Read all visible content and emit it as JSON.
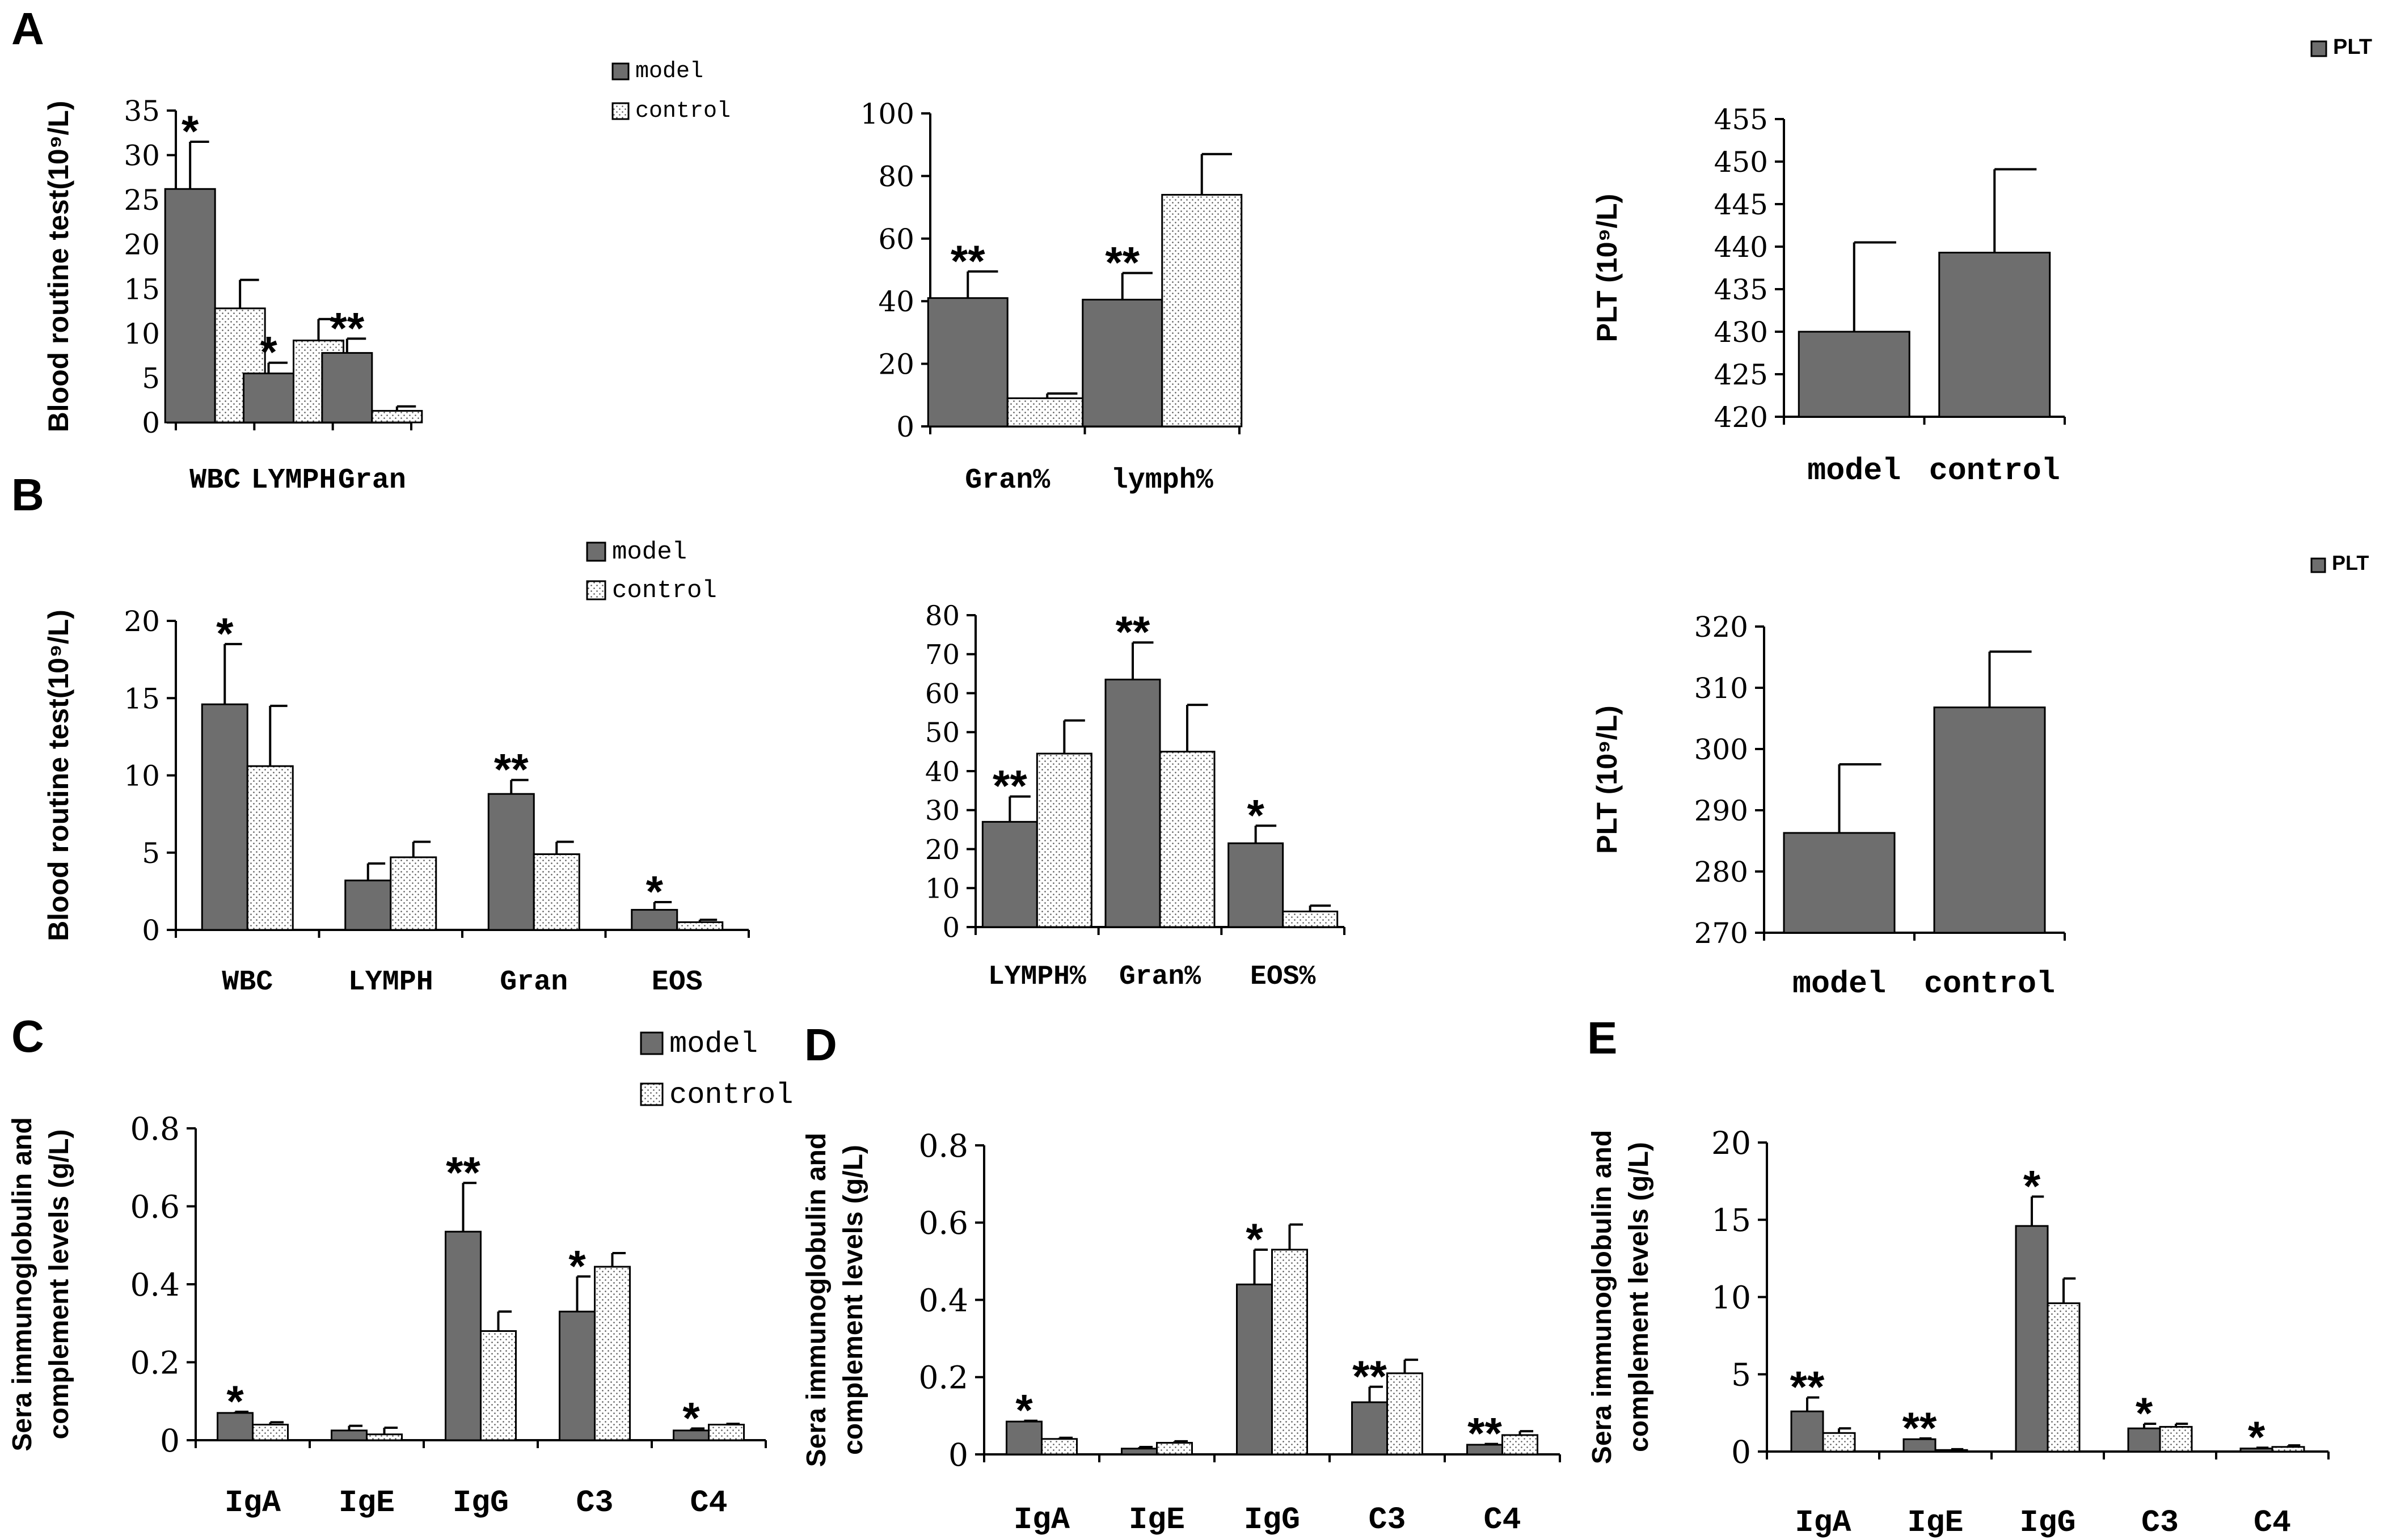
{
  "colors": {
    "model": "#6e6e6e",
    "control_bg": "#ffffff",
    "control_dot": "#555555",
    "axis": "#000000"
  },
  "panel_labels": {
    "A": "A",
    "B": "B",
    "C": "C",
    "D": "D",
    "E": "E"
  },
  "chart_data": [
    {
      "id": "A1",
      "type": "bar",
      "ylabel": "Blood routine test(10⁹/L)",
      "categories": [
        "WBC",
        "LYMPH",
        "Gran"
      ],
      "ylim": [
        0,
        35
      ],
      "yticks": [
        0,
        5,
        10,
        15,
        20,
        25,
        30,
        35
      ],
      "legend": [
        "model",
        "control"
      ],
      "series": [
        {
          "name": "model",
          "values": [
            26.2,
            5.5,
            7.8
          ],
          "errors": [
            5.3,
            1.2,
            1.6
          ],
          "sig": [
            "*",
            "*",
            "**"
          ]
        },
        {
          "name": "control",
          "values": [
            12.8,
            9.2,
            1.3
          ],
          "errors": [
            3.2,
            2.4,
            0.5
          ],
          "sig": [
            "",
            "",
            ""
          ]
        }
      ]
    },
    {
      "id": "A2",
      "type": "bar",
      "ylabel": "",
      "categories": [
        "Gran%",
        "lymph%"
      ],
      "ylim": [
        0,
        100
      ],
      "yticks": [
        0,
        20,
        40,
        60,
        80,
        100
      ],
      "series": [
        {
          "name": "model",
          "values": [
            41,
            40.5
          ],
          "errors": [
            8.5,
            8.5
          ],
          "sig": [
            "**",
            "**"
          ]
        },
        {
          "name": "control",
          "values": [
            9,
            74
          ],
          "errors": [
            1.5,
            13
          ],
          "sig": [
            "",
            ""
          ]
        }
      ]
    },
    {
      "id": "A3",
      "type": "bar",
      "ylabel": "PLT (10⁹/L)",
      "categories": [
        "model",
        "control"
      ],
      "ylim": [
        420,
        455
      ],
      "yticks": [
        420,
        425,
        430,
        435,
        440,
        445,
        450,
        455
      ],
      "legend": [
        "PLT"
      ],
      "series": [
        {
          "name": "PLT",
          "values": [
            430,
            439.3
          ],
          "errors": [
            10.5,
            9.8
          ],
          "sig": [
            "",
            ""
          ]
        }
      ]
    },
    {
      "id": "B1",
      "type": "bar",
      "ylabel": "Blood routine test(10⁹/L)",
      "categories": [
        "WBC",
        "LYMPH",
        "Gran",
        "EOS"
      ],
      "ylim": [
        0,
        20
      ],
      "yticks": [
        0,
        5,
        10,
        15,
        20
      ],
      "legend": [
        "model",
        "control"
      ],
      "series": [
        {
          "name": "model",
          "values": [
            14.6,
            3.2,
            8.8,
            1.3
          ],
          "errors": [
            3.9,
            1.1,
            0.9,
            0.5
          ],
          "sig": [
            "*",
            "",
            "**",
            "*"
          ]
        },
        {
          "name": "control",
          "values": [
            10.6,
            4.7,
            4.9,
            0.5
          ],
          "errors": [
            3.9,
            1.0,
            0.8,
            0.15
          ],
          "sig": [
            "",
            "",
            "",
            ""
          ]
        }
      ]
    },
    {
      "id": "B2",
      "type": "bar",
      "ylabel": "",
      "categories": [
        "LYMPH%",
        "Gran%",
        "EOS%"
      ],
      "ylim": [
        0,
        80
      ],
      "yticks": [
        0,
        10,
        20,
        30,
        40,
        50,
        60,
        70,
        80
      ],
      "series": [
        {
          "name": "model",
          "values": [
            27,
            63.5,
            21.5
          ],
          "errors": [
            6.5,
            9.5,
            4.5
          ],
          "sig": [
            "**",
            "**",
            "*"
          ]
        },
        {
          "name": "control",
          "values": [
            44.5,
            45,
            4
          ],
          "errors": [
            8.5,
            12,
            1.5
          ],
          "sig": [
            "",
            "",
            ""
          ]
        }
      ]
    },
    {
      "id": "B3",
      "type": "bar",
      "ylabel": "PLT (10⁹/L)",
      "categories": [
        "model",
        "control"
      ],
      "ylim": [
        270,
        320
      ],
      "yticks": [
        270,
        280,
        290,
        300,
        310,
        320
      ],
      "legend": [
        "PLT"
      ],
      "series": [
        {
          "name": "PLT",
          "values": [
            286.3,
            306.8
          ],
          "errors": [
            11.2,
            9.1
          ],
          "sig": [
            "",
            ""
          ]
        }
      ]
    },
    {
      "id": "C",
      "type": "bar",
      "ylabel": "Sera immunoglobulin and complement levels (g/L)",
      "categories": [
        "IgA",
        "IgE",
        "IgG",
        "C3",
        "C4"
      ],
      "ylim": [
        0,
        0.8
      ],
      "yticks": [
        0,
        0.2,
        0.4,
        0.6,
        0.8
      ],
      "legend": [
        "model",
        "control"
      ],
      "series": [
        {
          "name": "model",
          "values": [
            0.07,
            0.025,
            0.535,
            0.33,
            0.025
          ],
          "errors": [
            0.003,
            0.012,
            0.125,
            0.09,
            0.005
          ],
          "sig": [
            "*",
            "",
            "**",
            "*",
            "*"
          ]
        },
        {
          "name": "control",
          "values": [
            0.04,
            0.015,
            0.28,
            0.445,
            0.04
          ],
          "errors": [
            0.006,
            0.017,
            0.05,
            0.035,
            0.002
          ],
          "sig": [
            "",
            "",
            "",
            "",
            ""
          ]
        }
      ]
    },
    {
      "id": "D",
      "type": "bar",
      "ylabel": "Sera immunoglobulin and complement levels (g/L)",
      "categories": [
        "IgA",
        "IgE",
        "IgG",
        "C3",
        "C4"
      ],
      "ylim": [
        0,
        0.8
      ],
      "yticks": [
        0,
        0.2,
        0.4,
        0.6,
        0.8
      ],
      "series": [
        {
          "name": "model",
          "values": [
            0.085,
            0.015,
            0.44,
            0.135,
            0.025
          ],
          "errors": [
            0.002,
            0.004,
            0.09,
            0.04,
            0.002
          ],
          "sig": [
            "*",
            "",
            "*",
            "**",
            "**"
          ]
        },
        {
          "name": "control",
          "values": [
            0.04,
            0.03,
            0.53,
            0.21,
            0.05
          ],
          "errors": [
            0.003,
            0.004,
            0.065,
            0.035,
            0.01
          ],
          "sig": [
            "",
            "",
            "",
            "",
            ""
          ]
        }
      ]
    },
    {
      "id": "E",
      "type": "bar",
      "ylabel": "Sera immunoglobulin and complement levels (g/L)",
      "categories": [
        "IgA",
        "IgE",
        "IgG",
        "C3",
        "C4"
      ],
      "ylim": [
        0,
        20
      ],
      "yticks": [
        0,
        5,
        10,
        15,
        20
      ],
      "series": [
        {
          "name": "model",
          "values": [
            2.6,
            0.8,
            14.6,
            1.5,
            0.2
          ],
          "errors": [
            0.9,
            0.05,
            1.9,
            0.3,
            0.05
          ],
          "sig": [
            "**",
            "**",
            "*",
            "*",
            "*"
          ]
        },
        {
          "name": "control",
          "values": [
            1.2,
            0.1,
            9.6,
            1.6,
            0.3
          ],
          "errors": [
            0.3,
            0.05,
            1.6,
            0.2,
            0.1
          ],
          "sig": [
            "",
            "",
            "",
            "",
            ""
          ]
        }
      ]
    }
  ]
}
